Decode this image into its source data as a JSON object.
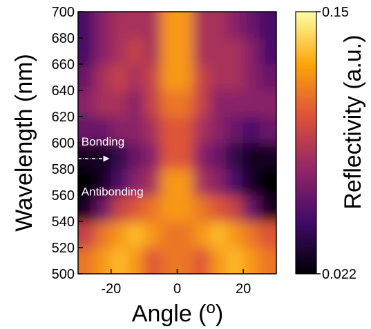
{
  "chart_data": {
    "type": "heatmap",
    "xlabel": {
      "text": "Angle (",
      "superscript": "o",
      "close": ")"
    },
    "ylabel": "Wavelength (nm)",
    "colorbar_label": "Reflectivity (a.u.)",
    "xlim": [
      -30,
      30
    ],
    "xticks": [
      -20,
      0,
      20
    ],
    "ylim": [
      500,
      700
    ],
    "yticks": [
      500,
      520,
      540,
      560,
      580,
      600,
      620,
      640,
      660,
      680,
      700
    ],
    "zlim": [
      0.022,
      0.15
    ],
    "zticks": [
      0.022,
      0.15
    ],
    "colormap": [
      "#000004",
      "#420a68",
      "#932667",
      "#dd513a",
      "#fca50a",
      "#fcffa4"
    ],
    "x": [
      -27.5,
      -22.5,
      -17.5,
      -12.5,
      -7.5,
      -2.5,
      2.5,
      7.5,
      12.5,
      17.5,
      22.5,
      27.5
    ],
    "y": [
      510,
      530,
      550,
      570,
      590,
      610,
      630,
      650,
      670,
      690
    ],
    "z": [
      [
        0.11,
        0.12,
        0.13,
        0.12,
        0.1,
        0.11,
        0.11,
        0.1,
        0.12,
        0.13,
        0.12,
        0.11
      ],
      [
        0.09,
        0.11,
        0.12,
        0.13,
        0.12,
        0.11,
        0.11,
        0.12,
        0.13,
        0.12,
        0.11,
        0.1
      ],
      [
        0.03,
        0.06,
        0.09,
        0.1,
        0.11,
        0.12,
        0.12,
        0.11,
        0.1,
        0.09,
        0.06,
        0.03
      ],
      [
        0.022,
        0.03,
        0.05,
        0.07,
        0.08,
        0.12,
        0.12,
        0.08,
        0.07,
        0.05,
        0.03,
        0.022
      ],
      [
        0.03,
        0.03,
        0.04,
        0.06,
        0.07,
        0.1,
        0.1,
        0.07,
        0.06,
        0.04,
        0.03,
        0.03
      ],
      [
        0.06,
        0.06,
        0.07,
        0.07,
        0.08,
        0.1,
        0.1,
        0.08,
        0.07,
        0.06,
        0.05,
        0.06
      ],
      [
        0.07,
        0.08,
        0.08,
        0.07,
        0.09,
        0.11,
        0.11,
        0.09,
        0.07,
        0.07,
        0.07,
        0.07
      ],
      [
        0.06,
        0.08,
        0.09,
        0.08,
        0.09,
        0.12,
        0.12,
        0.09,
        0.08,
        0.08,
        0.07,
        0.06
      ],
      [
        0.05,
        0.07,
        0.08,
        0.09,
        0.08,
        0.12,
        0.12,
        0.08,
        0.08,
        0.08,
        0.07,
        0.05
      ],
      [
        0.05,
        0.07,
        0.08,
        0.08,
        0.08,
        0.12,
        0.12,
        0.08,
        0.08,
        0.07,
        0.06,
        0.05
      ]
    ],
    "annotations": [
      {
        "text": "Bonding",
        "x": -29,
        "y": 601
      },
      {
        "text": "Antibonding",
        "x": -29,
        "y": 563
      }
    ]
  }
}
